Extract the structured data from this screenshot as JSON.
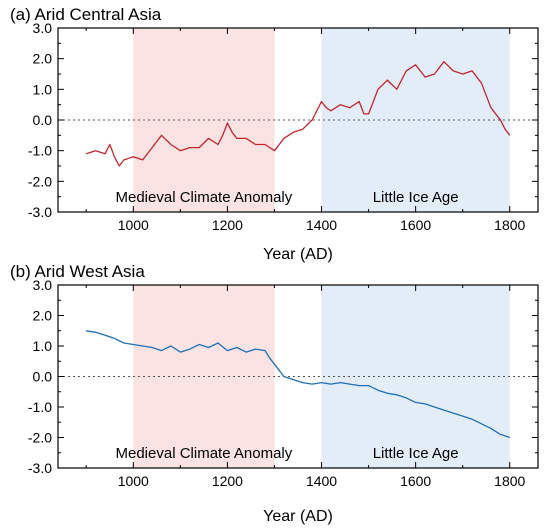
{
  "chart_data": [
    {
      "type": "line",
      "title": "(a) Arid Central Asia",
      "xlabel": "Year (AD)",
      "ylabel": "",
      "xlim": [
        840,
        1860
      ],
      "ylim": [
        -3.0,
        3.0
      ],
      "xticks": [
        1000,
        1200,
        1400,
        1600,
        1800
      ],
      "yticks": [
        -3.0,
        -2.0,
        -1.0,
        0.0,
        1.0,
        2.0,
        3.0
      ],
      "ytick_labels": [
        "-3.0",
        "-2.0",
        "-1.0",
        "0.0",
        "1.0",
        "2.0",
        "3.0"
      ],
      "zero_line": true,
      "line_color": "#c0272d",
      "bands": [
        {
          "label": "Medieval Climate Anomaly",
          "start": 1000,
          "end": 1300,
          "color": "#fbe3e3"
        },
        {
          "label": "Little Ice Age",
          "start": 1400,
          "end": 1800,
          "color": "#e3edf7"
        }
      ],
      "series": [
        {
          "x": [
            900,
            920,
            940,
            950,
            960,
            970,
            980,
            1000,
            1020,
            1040,
            1060,
            1080,
            1100,
            1120,
            1140,
            1160,
            1180,
            1190,
            1200,
            1210,
            1220,
            1240,
            1260,
            1280,
            1300,
            1320,
            1340,
            1360,
            1380,
            1400,
            1410,
            1420,
            1440,
            1460,
            1480,
            1490,
            1500,
            1520,
            1540,
            1560,
            1580,
            1600,
            1620,
            1640,
            1660,
            1680,
            1700,
            1720,
            1740,
            1760,
            1780,
            1790,
            1800
          ],
          "y": [
            -1.1,
            -1.0,
            -1.1,
            -0.8,
            -1.2,
            -1.5,
            -1.3,
            -1.2,
            -1.3,
            -0.9,
            -0.5,
            -0.8,
            -1.0,
            -0.9,
            -0.9,
            -0.6,
            -0.8,
            -0.5,
            -0.1,
            -0.4,
            -0.6,
            -0.6,
            -0.8,
            -0.8,
            -1.0,
            -0.6,
            -0.4,
            -0.3,
            0.0,
            0.6,
            0.4,
            0.3,
            0.5,
            0.4,
            0.6,
            0.2,
            0.2,
            1.0,
            1.3,
            1.0,
            1.6,
            1.8,
            1.4,
            1.5,
            1.9,
            1.6,
            1.5,
            1.6,
            1.2,
            0.4,
            0.0,
            -0.3,
            -0.5
          ]
        }
      ]
    },
    {
      "type": "line",
      "title": "(b) Arid West Asia",
      "xlabel": "Year (AD)",
      "ylabel": "",
      "xlim": [
        840,
        1860
      ],
      "ylim": [
        -3.0,
        3.0
      ],
      "xticks": [
        1000,
        1200,
        1400,
        1600,
        1800
      ],
      "yticks": [
        -3.0,
        -2.0,
        -1.0,
        0.0,
        1.0,
        2.0,
        3.0
      ],
      "ytick_labels": [
        "-3.0",
        "-2.0",
        "-1.0",
        "0.0",
        "1.0",
        "2.0",
        "3.0"
      ],
      "zero_line": true,
      "line_color": "#1f6fb5",
      "bands": [
        {
          "label": "Medieval Climate Anomaly",
          "start": 1000,
          "end": 1300,
          "color": "#fbe3e3"
        },
        {
          "label": "Little Ice Age",
          "start": 1400,
          "end": 1800,
          "color": "#e3edf7"
        }
      ],
      "series": [
        {
          "x": [
            900,
            920,
            940,
            960,
            980,
            1000,
            1020,
            1040,
            1060,
            1080,
            1100,
            1120,
            1140,
            1160,
            1180,
            1200,
            1220,
            1240,
            1260,
            1280,
            1290,
            1300,
            1320,
            1340,
            1360,
            1380,
            1400,
            1420,
            1440,
            1460,
            1480,
            1500,
            1520,
            1540,
            1560,
            1580,
            1600,
            1620,
            1640,
            1660,
            1680,
            1700,
            1720,
            1740,
            1760,
            1780,
            1800
          ],
          "y": [
            1.5,
            1.45,
            1.35,
            1.25,
            1.1,
            1.05,
            1.0,
            0.95,
            0.85,
            1.0,
            0.8,
            0.9,
            1.05,
            0.95,
            1.1,
            0.85,
            0.95,
            0.8,
            0.9,
            0.85,
            0.6,
            0.4,
            0.0,
            -0.1,
            -0.2,
            -0.25,
            -0.2,
            -0.25,
            -0.2,
            -0.25,
            -0.3,
            -0.3,
            -0.45,
            -0.55,
            -0.6,
            -0.7,
            -0.85,
            -0.9,
            -1.0,
            -1.1,
            -1.2,
            -1.3,
            -1.4,
            -1.55,
            -1.7,
            -1.9,
            -2.0
          ]
        }
      ]
    }
  ]
}
